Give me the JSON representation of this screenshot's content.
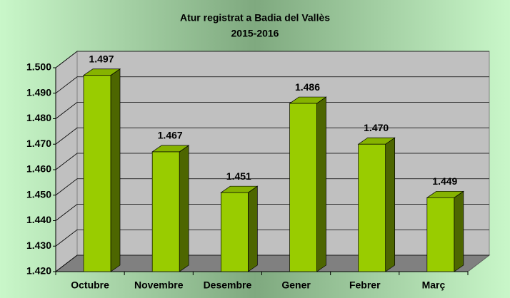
{
  "chart_data": {
    "type": "bar3d",
    "title": "Atur registrat a Badia del Vallès",
    "subtitle": "2015-2016",
    "categories": [
      "Octubre",
      "Novembre",
      "Desembre",
      "Gener",
      "Febrer",
      "Març"
    ],
    "values": [
      1497,
      1467,
      1451,
      1486,
      1470,
      1449
    ],
    "value_labels": [
      "1.497",
      "1.467",
      "1.451",
      "1.486",
      "1.470",
      "1.449"
    ],
    "color": "#99cc00",
    "ylim": [
      1420,
      1500
    ],
    "yticks": [
      {
        "value": 1420,
        "label": "1.420"
      },
      {
        "value": 1430,
        "label": "1.430"
      },
      {
        "value": 1440,
        "label": "1.440"
      },
      {
        "value": 1450,
        "label": "1.450"
      },
      {
        "value": 1460,
        "label": "1.460"
      },
      {
        "value": 1470,
        "label": "1.470"
      },
      {
        "value": 1480,
        "label": "1.480"
      },
      {
        "value": 1490,
        "label": "1.490"
      },
      {
        "value": 1500,
        "label": "1.500"
      }
    ],
    "grid": true
  }
}
